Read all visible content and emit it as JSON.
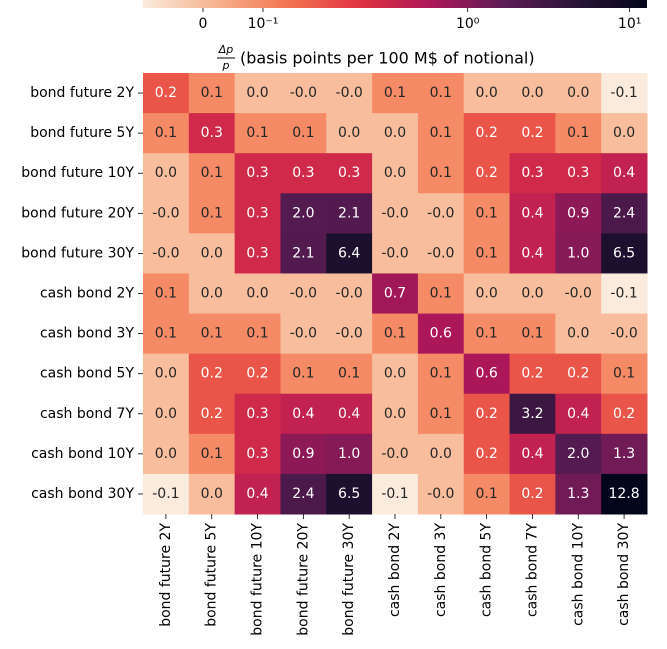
{
  "chart_data": {
    "type": "heatmap",
    "title_fraction": {
      "numerator": "Δp",
      "denominator": "p"
    },
    "title": "(basis points per 100 M$ of notional)",
    "row_labels": [
      "bond future 2Y",
      "bond future 5Y",
      "bond future 10Y",
      "bond future 20Y",
      "bond future 30Y",
      "cash bond 2Y",
      "cash bond 3Y",
      "cash bond 5Y",
      "cash bond 7Y",
      "cash bond 10Y",
      "cash bond 30Y"
    ],
    "categories": [
      "bond future 2Y",
      "bond future 5Y",
      "bond future 10Y",
      "bond future 20Y",
      "bond future 30Y",
      "cash bond 2Y",
      "cash bond 3Y",
      "cash bond 5Y",
      "cash bond 7Y",
      "cash bond 10Y",
      "cash bond 30Y"
    ],
    "values": [
      [
        0.2,
        0.1,
        0.0,
        -0.0,
        -0.0,
        0.1,
        0.1,
        0.0,
        0.0,
        0.0,
        -0.1
      ],
      [
        0.1,
        0.3,
        0.1,
        0.1,
        0.0,
        0.0,
        0.1,
        0.2,
        0.2,
        0.1,
        0.0
      ],
      [
        0.0,
        0.1,
        0.3,
        0.3,
        0.3,
        0.0,
        0.1,
        0.2,
        0.3,
        0.3,
        0.4
      ],
      [
        -0.0,
        0.1,
        0.3,
        2.0,
        2.1,
        -0.0,
        -0.0,
        0.1,
        0.4,
        0.9,
        2.4
      ],
      [
        -0.0,
        0.0,
        0.3,
        2.1,
        6.4,
        -0.0,
        -0.0,
        0.1,
        0.4,
        1.0,
        6.5
      ],
      [
        0.1,
        0.0,
        0.0,
        -0.0,
        -0.0,
        0.7,
        0.1,
        0.0,
        0.0,
        -0.0,
        -0.1
      ],
      [
        0.1,
        0.1,
        0.1,
        -0.0,
        -0.0,
        0.1,
        0.6,
        0.1,
        0.1,
        0.0,
        -0.0
      ],
      [
        0.0,
        0.2,
        0.2,
        0.1,
        0.1,
        0.0,
        0.1,
        0.6,
        0.2,
        0.2,
        0.1
      ],
      [
        0.0,
        0.2,
        0.3,
        0.4,
        0.4,
        0.0,
        0.1,
        0.2,
        3.2,
        0.4,
        0.2
      ],
      [
        0.0,
        0.1,
        0.3,
        0.9,
        1.0,
        -0.0,
        0.0,
        0.2,
        0.4,
        2.0,
        1.3
      ],
      [
        -0.1,
        0.0,
        0.4,
        2.4,
        6.5,
        -0.1,
        -0.0,
        0.1,
        0.2,
        1.3,
        12.8
      ]
    ],
    "value_labels": [
      [
        "0.2",
        "0.1",
        "0.0",
        "-0.0",
        "-0.0",
        "0.1",
        "0.1",
        "0.0",
        "0.0",
        "0.0",
        "-0.1"
      ],
      [
        "0.1",
        "0.3",
        "0.1",
        "0.1",
        "0.0",
        "0.0",
        "0.1",
        "0.2",
        "0.2",
        "0.1",
        "0.0"
      ],
      [
        "0.0",
        "0.1",
        "0.3",
        "0.3",
        "0.3",
        "0.0",
        "0.1",
        "0.2",
        "0.3",
        "0.3",
        "0.4"
      ],
      [
        "-0.0",
        "0.1",
        "0.3",
        "2.0",
        "2.1",
        "-0.0",
        "-0.0",
        "0.1",
        "0.4",
        "0.9",
        "2.4"
      ],
      [
        "-0.0",
        "0.0",
        "0.3",
        "2.1",
        "6.4",
        "-0.0",
        "-0.0",
        "0.1",
        "0.4",
        "1.0",
        "6.5"
      ],
      [
        "0.1",
        "0.0",
        "0.0",
        "-0.0",
        "-0.0",
        "0.7",
        "0.1",
        "0.0",
        "0.0",
        "-0.0",
        "-0.1"
      ],
      [
        "0.1",
        "0.1",
        "0.1",
        "-0.0",
        "-0.0",
        "0.1",
        "0.6",
        "0.1",
        "0.1",
        "0.0",
        "-0.0"
      ],
      [
        "0.0",
        "0.2",
        "0.2",
        "0.1",
        "0.1",
        "0.0",
        "0.1",
        "0.6",
        "0.2",
        "0.2",
        "0.1"
      ],
      [
        "0.0",
        "0.2",
        "0.3",
        "0.4",
        "0.4",
        "0.0",
        "0.1",
        "0.2",
        "3.2",
        "0.4",
        "0.2"
      ],
      [
        "0.0",
        "0.1",
        "0.3",
        "0.9",
        "1.0",
        "-0.0",
        "0.0",
        "0.2",
        "0.4",
        "2.0",
        "1.3"
      ],
      [
        "-0.1",
        "0.0",
        "0.4",
        "2.4",
        "6.5",
        "-0.1",
        "-0.0",
        "0.1",
        "0.2",
        "1.3",
        "12.8"
      ]
    ],
    "color_scale": "symlog",
    "linthresh": 0.3,
    "clim": [
      -0.1,
      12.8
    ],
    "colorbar_ticks": [
      0,
      {
        "value": 0.1,
        "label": "10⁻¹"
      },
      {
        "value": 1,
        "label": "10⁰"
      },
      {
        "value": 10,
        "label": "10¹"
      }
    ],
    "colors": [
      "#faebdd",
      "#f6b48f",
      "#f37651",
      "#e13342",
      "#ad1759",
      "#5e1c55",
      "#2a1538",
      "#03051a"
    ]
  }
}
